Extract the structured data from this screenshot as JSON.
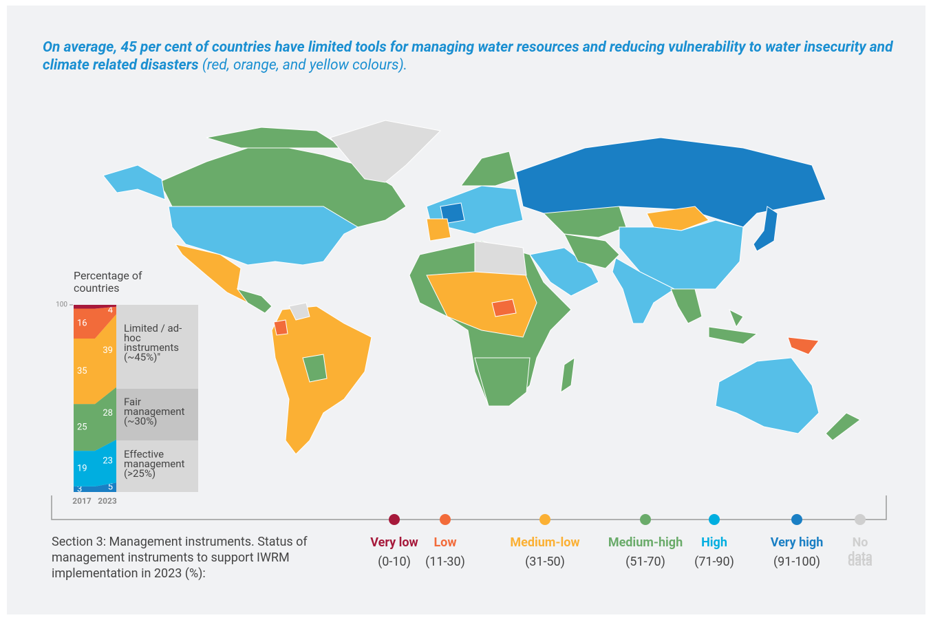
{
  "title": {
    "bold": "On average, 45 per cent of countries have limited tools for managing water resources and reducing vulnerability to water insecurity and climate related disasters",
    "italic": "(red, orange, and yellow colours)."
  },
  "chart_data": {
    "type": "stacked-area",
    "title": "Percentage of countries",
    "categories": [
      "2017",
      "2023"
    ],
    "ylim": [
      0,
      100
    ],
    "yticks": [
      100
    ],
    "series": [
      {
        "name": "Very low",
        "range": "(0-10)",
        "color": "#a6193b",
        "values": [
          2,
          1
        ]
      },
      {
        "name": "Low",
        "range": "(11-30)",
        "color": "#f26b3a",
        "values": [
          16,
          4
        ]
      },
      {
        "name": "Medium-low",
        "range": "(31-50)",
        "color": "#fbb034",
        "values": [
          35,
          39
        ]
      },
      {
        "name": "Medium-high",
        "range": "(51-70)",
        "color": "#6aab6a",
        "values": [
          25,
          28
        ]
      },
      {
        "name": "High",
        "range": "(71-90)",
        "color": "#00aee0",
        "values": [
          19,
          23
        ]
      },
      {
        "name": "Very high",
        "range": "(91-100)",
        "color": "#1a7fc4",
        "values": [
          3,
          5
        ]
      },
      {
        "name": "No data",
        "range": "data",
        "color": "#c9c9c9"
      }
    ],
    "bands": [
      "Limited / ad-hoc instruments (~45%)\"",
      "Fair management (~30%)",
      "Effective management (>25%)"
    ]
  },
  "caption": "Section 3: Management instruments. Status of management instruments to support IWRM implementation in 2023 (%):"
}
